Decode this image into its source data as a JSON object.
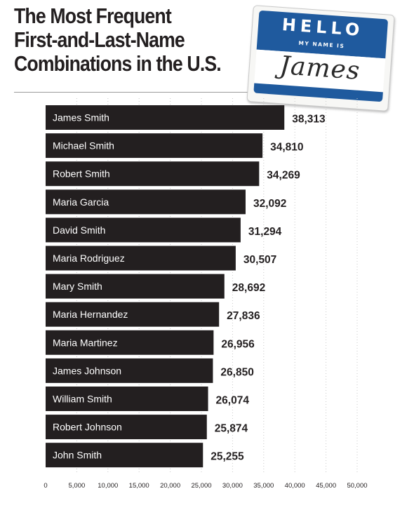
{
  "title_lines": [
    "The Most Frequent",
    "First-and-Last-Name",
    "Combinations in the U.S."
  ],
  "name_tag": {
    "hello": "HELLO",
    "subtitle": "MY NAME IS",
    "handwritten_name": "James"
  },
  "colors": {
    "bar": "#231f20",
    "bar_label": "#ffffff",
    "tag_blue": "#1f5a9e",
    "gridline": "#c8c8c8"
  },
  "chart_data": {
    "type": "bar",
    "orientation": "horizontal",
    "title": "The Most Frequent First-and-Last-Name Combinations in the U.S.",
    "xlabel": "",
    "ylabel": "",
    "xlim": [
      0,
      50000
    ],
    "grid": "dotted vertical gridlines",
    "categories": [
      "James Smith",
      "Michael Smith",
      "Robert Smith",
      "Maria Garcia",
      "David Smith",
      "Maria Rodriguez",
      "Mary Smith",
      "Maria Hernandez",
      "Maria Martinez",
      "James Johnson",
      "William Smith",
      "Robert Johnson",
      "John Smith"
    ],
    "values": [
      38313,
      34810,
      34269,
      32092,
      31294,
      30507,
      28692,
      27836,
      26956,
      26850,
      26074,
      25874,
      25255
    ],
    "value_labels": [
      "38,313",
      "34,810",
      "34,269",
      "32,092",
      "31,294",
      "30,507",
      "28,692",
      "27,836",
      "26,956",
      "26,850",
      "26,074",
      "25,874",
      "25,255"
    ],
    "ticks": [
      0,
      5000,
      10000,
      15000,
      20000,
      25000,
      30000,
      35000,
      40000,
      45000,
      50000
    ],
    "tick_labels": [
      "0",
      "5,000",
      "10,000",
      "15,000",
      "20,000",
      "25,000",
      "30,000",
      "35,000",
      "40,000",
      "45,000",
      "50,000"
    ]
  }
}
